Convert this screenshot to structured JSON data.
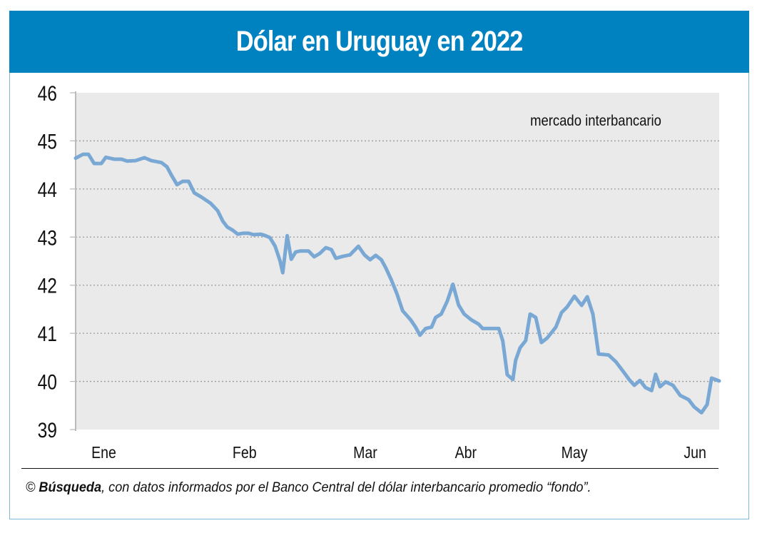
{
  "header": {
    "title": "Dólar en Uruguay en 2022"
  },
  "footer": {
    "copyright_symbol": "©",
    "source_name": "Búsqueda",
    "source_text": ", con datos informados por el Banco Central del dólar interbancario promedio “fondo”."
  },
  "colors": {
    "header_bg": "#0082c0",
    "line": "#7aa8d4",
    "plot_bg": "#eaeaea",
    "frame_border": "#7fb8d8"
  },
  "chart_data": {
    "type": "line",
    "title": "Dólar en Uruguay en 2022",
    "annotation": "mercado interbancario",
    "xlabel": "",
    "ylabel": "",
    "ylim": [
      39,
      46
    ],
    "xlim": [
      0,
      160
    ],
    "x_unit": "day of year 2022 (approx.)",
    "yticks": [
      46,
      45,
      44,
      43,
      42,
      41,
      40,
      39
    ],
    "xticks": [
      {
        "label": "Ene",
        "x": 7
      },
      {
        "label": "Feb",
        "x": 42
      },
      {
        "label": "Mar",
        "x": 72
      },
      {
        "label": "Abr",
        "x": 97
      },
      {
        "label": "May",
        "x": 124
      },
      {
        "label": "Jun",
        "x": 154
      }
    ],
    "grid": "horizontal dotted",
    "legend": "none",
    "series": [
      {
        "name": "mercado interbancario",
        "x": [
          0,
          1.8,
          3.2,
          4.6,
          6.4,
          7.5,
          9.6,
          11.4,
          12.8,
          14.9,
          17.1,
          18.8,
          21.3,
          22.7,
          23.8,
          25.2,
          26.6,
          28.1,
          29.5,
          31.3,
          33.6,
          35.3,
          36.6,
          37.7,
          39.1,
          40.3,
          41.6,
          43.0,
          44.2,
          46.0,
          47.2,
          48.3,
          49.6,
          50.8,
          51.5,
          52.6,
          53.6,
          54.7,
          55.8,
          57.9,
          59.3,
          60.7,
          62.2,
          63.6,
          64.7,
          66.4,
          68.2,
          70.3,
          71.8,
          73.2,
          74.6,
          76.0,
          77.1,
          78.5,
          79.9,
          81.3,
          83.3,
          84.5,
          85.6,
          87.0,
          88.5,
          89.5,
          90.9,
          92.4,
          93.8,
          95.2,
          96.6,
          98.4,
          100.2,
          101.2,
          103.4,
          105.2,
          106.2,
          107.3,
          108.7,
          109.4,
          110.5,
          111.9,
          113.0,
          114.4,
          115.8,
          117.2,
          119.4,
          120.8,
          122.2,
          124.0,
          125.8,
          127.2,
          128.6,
          130.0,
          132.5,
          134.3,
          136.1,
          137.8,
          138.9,
          140.3,
          141.7,
          143.2,
          144.2,
          145.3,
          146.7,
          148.5,
          150.3,
          152.4,
          153.8,
          155.6,
          157.0,
          158.1,
          160.0
        ],
        "values": [
          44.64,
          44.72,
          44.72,
          44.53,
          44.53,
          44.66,
          44.62,
          44.62,
          44.58,
          44.59,
          44.65,
          44.59,
          44.55,
          44.46,
          44.29,
          44.09,
          44.16,
          44.16,
          43.92,
          43.83,
          43.7,
          43.55,
          43.33,
          43.21,
          43.14,
          43.06,
          43.08,
          43.08,
          43.05,
          43.06,
          43.03,
          42.99,
          42.81,
          42.51,
          42.26,
          43.03,
          42.54,
          42.69,
          42.71,
          42.71,
          42.59,
          42.66,
          42.78,
          42.74,
          42.56,
          42.6,
          42.63,
          42.81,
          42.63,
          42.53,
          42.62,
          42.53,
          42.36,
          42.11,
          41.82,
          41.47,
          41.28,
          41.13,
          40.96,
          41.1,
          41.13,
          41.33,
          41.4,
          41.67,
          42.02,
          41.59,
          41.4,
          41.28,
          41.19,
          41.1,
          41.1,
          41.1,
          40.84,
          40.14,
          40.04,
          40.44,
          40.7,
          40.85,
          41.4,
          41.33,
          40.81,
          40.9,
          41.13,
          41.43,
          41.55,
          41.77,
          41.58,
          41.76,
          41.4,
          40.57,
          40.55,
          40.41,
          40.21,
          40.02,
          39.92,
          40.02,
          39.87,
          39.81,
          40.15,
          39.89,
          39.99,
          39.92,
          39.71,
          39.62,
          39.47,
          39.35,
          39.52,
          40.07,
          40.01
        ]
      }
    ]
  }
}
